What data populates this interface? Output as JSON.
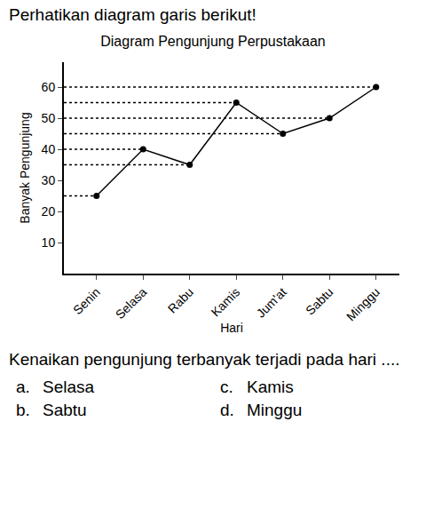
{
  "header": "Perhatikan diagram garis berikut!",
  "chart_data": {
    "type": "line",
    "title": "Diagram Pengunjung Perpustakaan",
    "x_label": "Hari",
    "y_label": "Banyak Pengunjung",
    "categories": [
      "Senin",
      "Selasa",
      "Rabu",
      "Kamis",
      "Jum'at",
      "Sabtu",
      "Minggu"
    ],
    "values": [
      25,
      40,
      35,
      55,
      45,
      50,
      60
    ],
    "color": "#000000",
    "marker": "circle",
    "line_style": "solid",
    "ylim": [
      0,
      68
    ],
    "yticks": [
      10,
      20,
      30,
      40,
      50,
      60
    ],
    "grid": false
  },
  "question": {
    "text": "Kenaikan pengunjung terbanyak terjadi pada hari ....",
    "options": [
      {
        "label": "a.",
        "text": "Selasa"
      },
      {
        "label": "b.",
        "text": "Sabtu"
      },
      {
        "label": "c.",
        "text": "Kamis"
      },
      {
        "label": "d.",
        "text": "Minggu"
      }
    ]
  }
}
